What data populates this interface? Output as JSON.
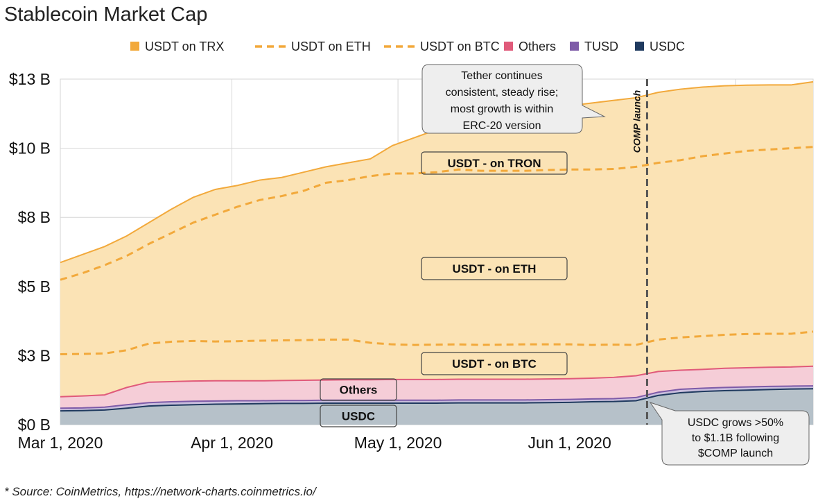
{
  "chart_data": {
    "type": "area",
    "title": "Stablecoin Market Cap",
    "xlabel": "",
    "ylabel": "",
    "x_start": "2020-03-01",
    "x_end": "2020-07-15",
    "x_ticks": [
      {
        "day": 0,
        "label": "Mar 1, 2020"
      },
      {
        "day": 31,
        "label": "Apr 1, 2020"
      },
      {
        "day": 61,
        "label": "May 1, 2020"
      },
      {
        "day": 92,
        "label": "Jun 1, 2020"
      }
    ],
    "x_grid_days": [
      0,
      31,
      61,
      92,
      122
    ],
    "ylim": [
      0,
      13
    ],
    "y_ticks": [
      {
        "value": 0,
        "label": "$0 B"
      },
      {
        "value": 2.6,
        "label": "$3 B"
      },
      {
        "value": 5.2,
        "label": "$5 B"
      },
      {
        "value": 7.8,
        "label": "$8 B"
      },
      {
        "value": 10.4,
        "label": "$10 B"
      },
      {
        "value": 13,
        "label": "$13 B"
      }
    ],
    "legend": [
      {
        "name": "USDT on TRX",
        "style": "square",
        "color": "#F2A93B"
      },
      {
        "name": "USDT on ETH",
        "style": "dash",
        "color": "#F2A93B"
      },
      {
        "name": "USDT on BTC",
        "style": "dash",
        "color": "#F2A93B"
      },
      {
        "name": "Others",
        "style": "square",
        "color": "#E05A7A"
      },
      {
        "name": "TUSD",
        "style": "square",
        "color": "#7E5BA8"
      },
      {
        "name": "USDC",
        "style": "square",
        "color": "#1F3A5F"
      }
    ],
    "days": [
      0,
      4,
      8,
      12,
      16,
      20,
      24,
      28,
      32,
      36,
      40,
      44,
      48,
      52,
      56,
      60,
      64,
      68,
      72,
      76,
      80,
      84,
      88,
      92,
      96,
      100,
      104,
      108,
      112,
      116,
      120,
      124,
      128,
      132,
      136
    ],
    "stacked_totals": {
      "usdc": [
        0.52,
        0.53,
        0.55,
        0.62,
        0.7,
        0.73,
        0.75,
        0.77,
        0.78,
        0.79,
        0.8,
        0.8,
        0.81,
        0.81,
        0.81,
        0.81,
        0.81,
        0.81,
        0.82,
        0.82,
        0.82,
        0.82,
        0.83,
        0.84,
        0.86,
        0.87,
        0.9,
        1.1,
        1.2,
        1.25,
        1.28,
        1.3,
        1.32,
        1.34,
        1.35
      ],
      "tusd": [
        0.62,
        0.63,
        0.66,
        0.75,
        0.83,
        0.86,
        0.88,
        0.89,
        0.9,
        0.9,
        0.91,
        0.91,
        0.92,
        0.92,
        0.92,
        0.92,
        0.92,
        0.92,
        0.93,
        0.93,
        0.93,
        0.93,
        0.94,
        0.95,
        0.97,
        0.98,
        1.02,
        1.22,
        1.33,
        1.37,
        1.4,
        1.42,
        1.44,
        1.45,
        1.46
      ],
      "others": [
        1.05,
        1.08,
        1.12,
        1.4,
        1.6,
        1.62,
        1.64,
        1.65,
        1.65,
        1.65,
        1.66,
        1.67,
        1.68,
        1.69,
        1.69,
        1.7,
        1.7,
        1.7,
        1.71,
        1.71,
        1.71,
        1.71,
        1.72,
        1.73,
        1.75,
        1.78,
        1.84,
        2.0,
        2.05,
        2.08,
        2.12,
        2.14,
        2.16,
        2.17,
        2.2
      ],
      "usdt_btc": [
        2.65,
        2.66,
        2.68,
        2.8,
        3.05,
        3.12,
        3.15,
        3.13,
        3.14,
        3.16,
        3.17,
        3.18,
        3.2,
        3.2,
        3.08,
        3.02,
        3.0,
        3.01,
        3.02,
        3.0,
        3.01,
        3.02,
        3.02,
        3.02,
        3.0,
        3.01,
        3.0,
        3.2,
        3.28,
        3.33,
        3.38,
        3.41,
        3.42,
        3.42,
        3.5
      ],
      "usdt_eth": [
        5.45,
        5.7,
        6.0,
        6.35,
        6.8,
        7.2,
        7.6,
        7.9,
        8.2,
        8.45,
        8.6,
        8.8,
        9.1,
        9.2,
        9.35,
        9.45,
        9.45,
        9.5,
        9.6,
        9.55,
        9.55,
        9.55,
        9.58,
        9.6,
        9.6,
        9.62,
        9.7,
        9.85,
        9.95,
        10.1,
        10.2,
        10.3,
        10.35,
        10.4,
        10.45
      ],
      "usdt_trx": [
        6.1,
        6.4,
        6.7,
        7.1,
        7.6,
        8.1,
        8.55,
        8.85,
        9.0,
        9.2,
        9.3,
        9.5,
        9.7,
        9.85,
        10.0,
        10.5,
        10.8,
        11.1,
        11.5,
        11.7,
        11.9,
        12.05,
        12.2,
        12.0,
        12.1,
        12.2,
        12.3,
        12.5,
        12.62,
        12.7,
        12.75,
        12.77,
        12.78,
        12.78,
        12.9
      ]
    },
    "series_labels": [
      {
        "key": "usdt_trx",
        "text": "USDT -  on TRON"
      },
      {
        "key": "usdt_eth",
        "text": "USDT - on ETH"
      },
      {
        "key": "usdt_btc",
        "text": "USDT - on BTC"
      },
      {
        "key": "others",
        "text": "Others"
      },
      {
        "key": "usdc",
        "text": "USDC"
      }
    ],
    "vline": {
      "day": 106,
      "label": "COMP launch"
    },
    "annotations": [
      {
        "id": "tether",
        "lines": [
          "Tether continues",
          "consistent, steady rise;",
          "most growth is within",
          "ERC-20 version"
        ]
      },
      {
        "id": "usdc",
        "lines": [
          "USDC grows >50%",
          "to $1.1B following",
          "$COMP launch"
        ]
      }
    ],
    "source": "* Source: CoinMetrics, https://network-charts.coinmetrics.io/",
    "colors": {
      "trx_fill": "#FBE3B5",
      "trx_line": "#F2A93B",
      "others_fill": "#F5CDD7",
      "others_line": "#E05A7A",
      "tusd_fill": "#C9BEDD",
      "tusd_line": "#7E5BA8",
      "usdc_fill": "#B6C1C9",
      "usdc_line": "#1F3A5F",
      "grid": "#d6d6d6",
      "vline": "#555555",
      "callout_fill": "#EEEEEE",
      "callout_stroke": "#666666"
    }
  }
}
